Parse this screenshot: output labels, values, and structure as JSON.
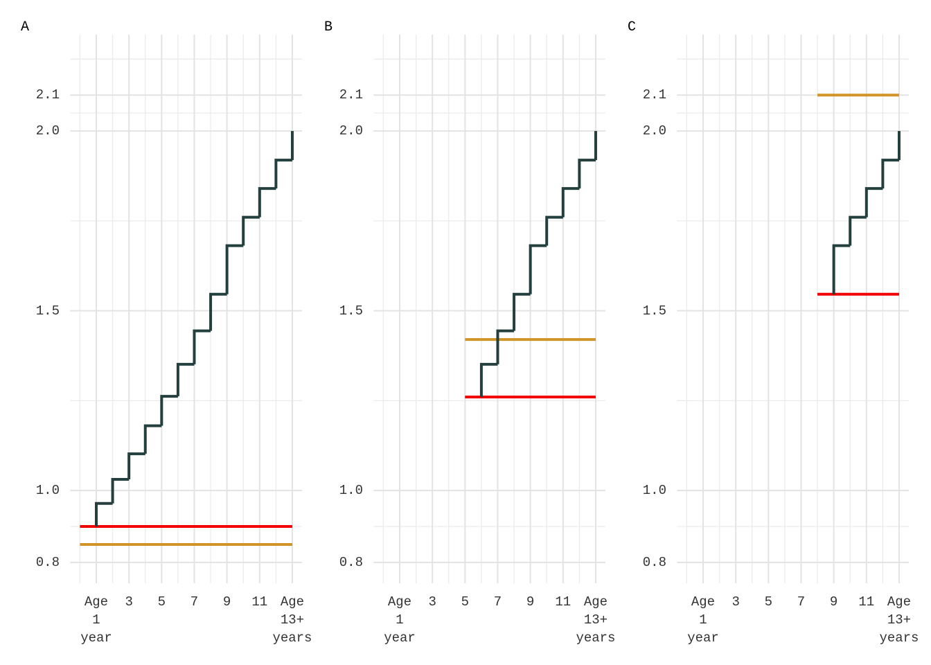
{
  "chart_data": [
    {
      "type": "step",
      "title": "A",
      "xlim": [
        -0.6,
        13.6
      ],
      "ylim": [
        0.742,
        2.268
      ],
      "xticks": [
        {
          "value": 1,
          "label": "Age\n1\nyear"
        },
        3,
        5,
        7,
        9,
        11,
        {
          "value": 13,
          "label": "Age\n13+\nyears"
        }
      ],
      "x_minor_grid": [
        0,
        2,
        4,
        6,
        8,
        10,
        12
      ],
      "yticks": [
        0.8,
        {
          "value": 1,
          "label": "1.0"
        },
        1.5,
        {
          "value": 2,
          "label": "2.0"
        },
        2.1
      ],
      "y_minor_grid": [
        0.9,
        1.25,
        1.75,
        2.05,
        2.2
      ],
      "grid": true,
      "series": [
        {
          "color": "#233f3e",
          "start": 0.9,
          "x": [
            1,
            2,
            3,
            4,
            5,
            6,
            7,
            8,
            9,
            10,
            11,
            12,
            13
          ],
          "values": [
            0.964,
            1.031,
            1.102,
            1.18,
            1.262,
            1.351,
            1.444,
            1.546,
            1.681,
            1.76,
            1.84,
            1.919,
            2.0
          ]
        }
      ],
      "hlines": [
        {
          "color": "#f20000",
          "value": 0.9,
          "x_range": [
            0,
            13
          ]
        },
        {
          "color": "#d09526",
          "value": 0.85,
          "x_range": [
            0,
            13
          ]
        }
      ]
    },
    {
      "type": "step",
      "title": "B",
      "xlim": [
        -0.6,
        13.6
      ],
      "ylim": [
        0.742,
        2.268
      ],
      "xticks": [
        {
          "value": 1,
          "label": "Age\n1\nyear"
        },
        3,
        5,
        7,
        9,
        11,
        {
          "value": 13,
          "label": "Age\n13+\nyears"
        }
      ],
      "x_minor_grid": [
        0,
        2,
        4,
        6,
        8,
        10,
        12
      ],
      "yticks": [
        0.8,
        {
          "value": 1,
          "label": "1.0"
        },
        1.5,
        {
          "value": 2,
          "label": "2.0"
        },
        2.1
      ],
      "y_minor_grid": [
        0.9,
        1.25,
        1.75,
        2.05,
        2.2
      ],
      "grid": true,
      "series": [
        {
          "color": "#233f3e",
          "start": 1.26,
          "x": [
            6,
            7,
            8,
            9,
            10,
            11,
            12,
            13
          ],
          "values": [
            1.351,
            1.444,
            1.546,
            1.681,
            1.76,
            1.84,
            1.919,
            2.0
          ]
        }
      ],
      "hlines": [
        {
          "color": "#d09526",
          "value": 1.42,
          "x_range": [
            5,
            13
          ]
        },
        {
          "color": "#f20000",
          "value": 1.26,
          "x_range": [
            5,
            13
          ]
        }
      ]
    },
    {
      "type": "step",
      "title": "C",
      "xlim": [
        -0.6,
        13.6
      ],
      "ylim": [
        0.742,
        2.268
      ],
      "xticks": [
        {
          "value": 1,
          "label": "Age\n1\nyear"
        },
        3,
        5,
        7,
        9,
        11,
        {
          "value": 13,
          "label": "Age\n13+\nyears"
        }
      ],
      "x_minor_grid": [
        0,
        2,
        4,
        6,
        8,
        10,
        12
      ],
      "yticks": [
        0.8,
        {
          "value": 1,
          "label": "1.0"
        },
        1.5,
        {
          "value": 2,
          "label": "2.0"
        },
        2.1
      ],
      "y_minor_grid": [
        0.9,
        1.25,
        1.75,
        2.05,
        2.2
      ],
      "grid": true,
      "series": [
        {
          "color": "#233f3e",
          "start": 1.546,
          "x": [
            9,
            10,
            11,
            12,
            13
          ],
          "values": [
            1.681,
            1.76,
            1.84,
            1.919,
            2.0
          ]
        }
      ],
      "hlines": [
        {
          "color": "#f20000",
          "value": 1.546,
          "x_range": [
            8,
            13
          ]
        },
        {
          "color": "#d09526",
          "value": 2.1,
          "x_range": [
            8,
            13
          ]
        }
      ]
    }
  ]
}
